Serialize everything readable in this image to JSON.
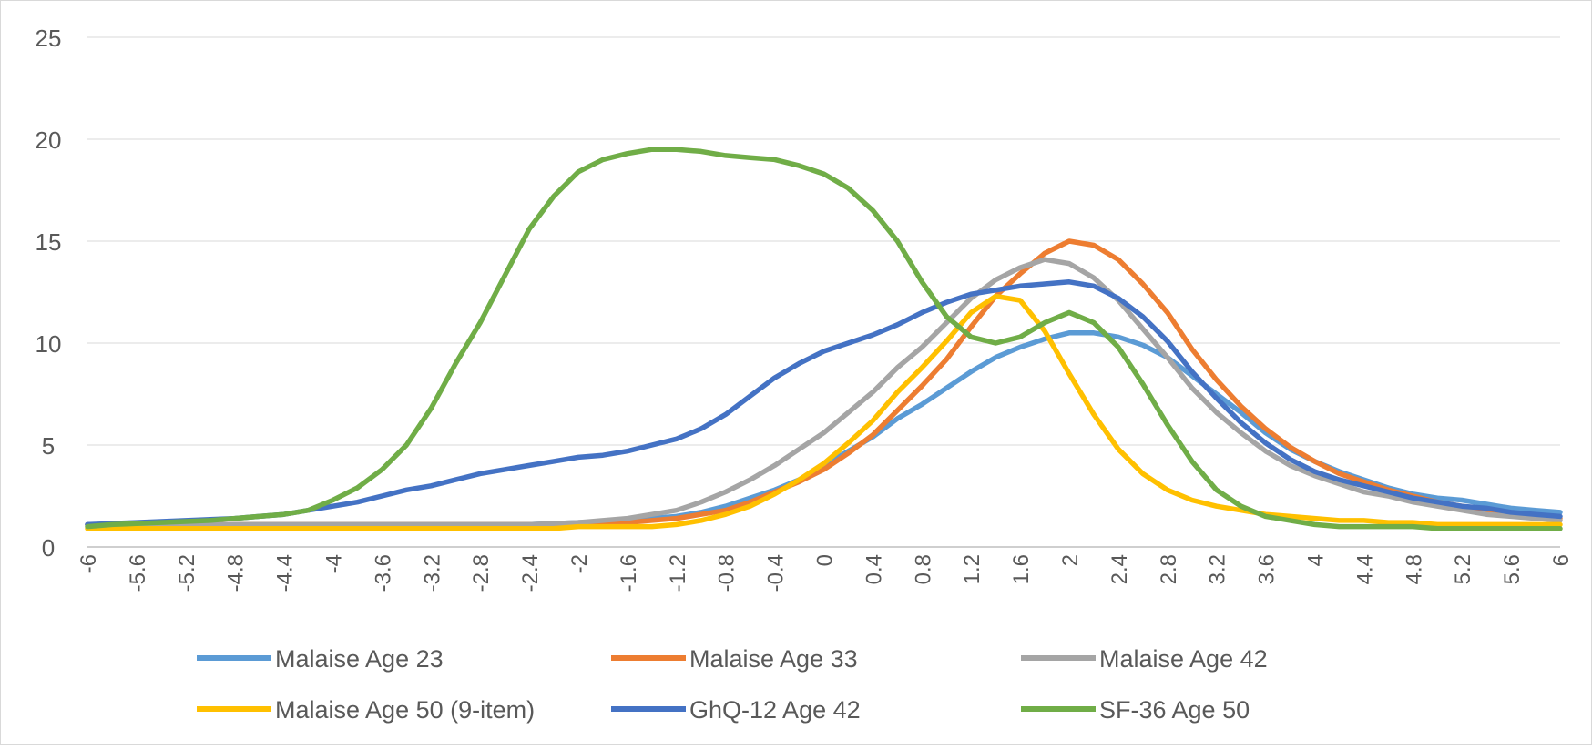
{
  "chart_data": {
    "type": "line",
    "title": "",
    "xlabel": "",
    "ylabel": "",
    "ylim": [
      0,
      25
    ],
    "yticks": [
      0,
      5,
      10,
      15,
      20,
      25
    ],
    "x": [
      -6,
      -5.8,
      -5.6,
      -5.4,
      -5.2,
      -5,
      -4.8,
      -4.6,
      -4.4,
      -4.2,
      -4,
      -3.8,
      -3.6,
      -3.4,
      -3.2,
      -3,
      -2.8,
      -2.6,
      -2.4,
      -2.2,
      -2,
      -1.8,
      -1.6,
      -1.4,
      -1.2,
      -1,
      -0.8,
      -0.6,
      -0.4,
      -0.2,
      0,
      0.2,
      0.4,
      0.6,
      0.8,
      1,
      1.2,
      1.4,
      1.6,
      1.8,
      2,
      2.2,
      2.4,
      2.6,
      2.8,
      3,
      3.2,
      3.4,
      3.6,
      3.8,
      4,
      4.2,
      4.4,
      4.6,
      4.8,
      5,
      5.2,
      5.4,
      5.6,
      5.8,
      6
    ],
    "xtick_labels": [
      "-6",
      "-5.6",
      "-5.2",
      "-4.8",
      "-4.4",
      "-4",
      "-3.6",
      "-3.2",
      "-2.8",
      "-2.4",
      "-2",
      "-1.6",
      "-1.2",
      "-0.8",
      "-0.4",
      "0",
      "0.4",
      "0.8",
      "1.2",
      "1.6",
      "2",
      "2.4",
      "2.8",
      "3.2",
      "3.6",
      "4",
      "4.4",
      "4.8",
      "5.2",
      "5.6",
      "6"
    ],
    "grid": true,
    "legend_position": "bottom",
    "series": [
      {
        "name": "Malaise Age 23",
        "color": "#5b9bd5",
        "values": [
          1.1,
          1.1,
          1.1,
          1.1,
          1.1,
          1.1,
          1.1,
          1.1,
          1.1,
          1.1,
          1.1,
          1.1,
          1.1,
          1.1,
          1.1,
          1.1,
          1.1,
          1.1,
          1.1,
          1.15,
          1.2,
          1.25,
          1.3,
          1.4,
          1.5,
          1.7,
          2.0,
          2.4,
          2.8,
          3.3,
          4.0,
          4.7,
          5.4,
          6.3,
          7.0,
          7.8,
          8.6,
          9.3,
          9.8,
          10.2,
          10.5,
          10.5,
          10.3,
          9.9,
          9.3,
          8.4,
          7.5,
          6.6,
          5.6,
          4.8,
          4.2,
          3.7,
          3.3,
          2.9,
          2.6,
          2.4,
          2.3,
          2.1,
          1.9,
          1.8,
          1.7
        ]
      },
      {
        "name": "Malaise Age 33",
        "color": "#ed7d31",
        "values": [
          1.1,
          1.1,
          1.1,
          1.1,
          1.1,
          1.1,
          1.1,
          1.1,
          1.1,
          1.1,
          1.1,
          1.1,
          1.1,
          1.1,
          1.1,
          1.1,
          1.1,
          1.1,
          1.1,
          1.1,
          1.1,
          1.15,
          1.2,
          1.3,
          1.4,
          1.6,
          1.8,
          2.2,
          2.7,
          3.2,
          3.8,
          4.6,
          5.5,
          6.7,
          7.9,
          9.2,
          10.8,
          12.3,
          13.4,
          14.4,
          15.0,
          14.8,
          14.1,
          12.9,
          11.5,
          9.7,
          8.2,
          6.9,
          5.8,
          4.9,
          4.2,
          3.6,
          3.2,
          2.8,
          2.5,
          2.2,
          2.0,
          1.8,
          1.6,
          1.5,
          1.4
        ]
      },
      {
        "name": "Malaise Age 42",
        "color": "#a5a5a5",
        "values": [
          1.1,
          1.1,
          1.1,
          1.1,
          1.1,
          1.1,
          1.1,
          1.1,
          1.1,
          1.1,
          1.1,
          1.1,
          1.1,
          1.1,
          1.1,
          1.1,
          1.1,
          1.1,
          1.1,
          1.15,
          1.2,
          1.3,
          1.4,
          1.6,
          1.8,
          2.2,
          2.7,
          3.3,
          4.0,
          4.8,
          5.6,
          6.6,
          7.6,
          8.8,
          9.8,
          11.0,
          12.2,
          13.1,
          13.7,
          14.1,
          13.9,
          13.2,
          12.1,
          10.7,
          9.3,
          7.8,
          6.6,
          5.6,
          4.7,
          4.0,
          3.5,
          3.1,
          2.7,
          2.5,
          2.2,
          2.0,
          1.8,
          1.6,
          1.5,
          1.4,
          1.3
        ]
      },
      {
        "name": "Malaise Age 50 (9-item)",
        "color": "#ffc000",
        "values": [
          0.9,
          0.9,
          0.9,
          0.9,
          0.9,
          0.9,
          0.9,
          0.9,
          0.9,
          0.9,
          0.9,
          0.9,
          0.9,
          0.9,
          0.9,
          0.9,
          0.9,
          0.9,
          0.9,
          0.9,
          1.0,
          1.0,
          1.0,
          1.0,
          1.1,
          1.3,
          1.6,
          2.0,
          2.6,
          3.3,
          4.1,
          5.1,
          6.2,
          7.6,
          8.8,
          10.1,
          11.5,
          12.3,
          12.1,
          10.6,
          8.5,
          6.5,
          4.8,
          3.6,
          2.8,
          2.3,
          2.0,
          1.8,
          1.6,
          1.5,
          1.4,
          1.3,
          1.3,
          1.2,
          1.2,
          1.1,
          1.1,
          1.1,
          1.1,
          1.1,
          1.1
        ]
      },
      {
        "name": "GhQ-12 Age 42",
        "color": "#4472c4",
        "values": [
          1.1,
          1.15,
          1.2,
          1.25,
          1.3,
          1.35,
          1.4,
          1.5,
          1.6,
          1.8,
          2.0,
          2.2,
          2.5,
          2.8,
          3.0,
          3.3,
          3.6,
          3.8,
          4.0,
          4.2,
          4.4,
          4.5,
          4.7,
          5.0,
          5.3,
          5.8,
          6.5,
          7.4,
          8.3,
          9.0,
          9.6,
          10.0,
          10.4,
          10.9,
          11.5,
          12.0,
          12.4,
          12.6,
          12.8,
          12.9,
          13.0,
          12.8,
          12.2,
          11.3,
          10.1,
          8.6,
          7.3,
          6.1,
          5.1,
          4.3,
          3.7,
          3.3,
          3.0,
          2.7,
          2.4,
          2.2,
          2.0,
          1.9,
          1.7,
          1.6,
          1.5
        ]
      },
      {
        "name": "SF-36 Age 50",
        "color": "#70ad47",
        "values": [
          1.0,
          1.1,
          1.15,
          1.2,
          1.25,
          1.3,
          1.4,
          1.5,
          1.6,
          1.8,
          2.3,
          2.9,
          3.8,
          5.0,
          6.8,
          9.0,
          11.0,
          13.3,
          15.6,
          17.2,
          18.4,
          19.0,
          19.3,
          19.5,
          19.5,
          19.4,
          19.2,
          19.1,
          19.0,
          18.7,
          18.3,
          17.6,
          16.5,
          15.0,
          13.0,
          11.3,
          10.3,
          10.0,
          10.3,
          11.0,
          11.5,
          11.0,
          9.8,
          8.0,
          6.0,
          4.2,
          2.8,
          2.0,
          1.5,
          1.3,
          1.1,
          1.0,
          1.0,
          1.0,
          1.0,
          0.9,
          0.9,
          0.9,
          0.9,
          0.9,
          0.9
        ]
      }
    ]
  }
}
